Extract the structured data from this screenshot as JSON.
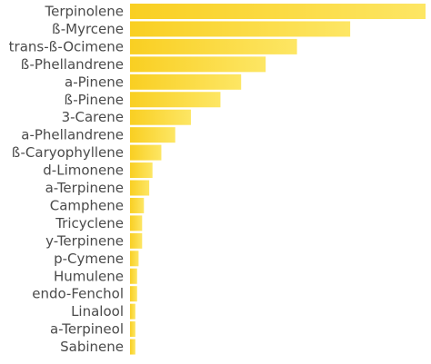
{
  "chart_data": {
    "type": "bar",
    "orientation": "horizontal",
    "title": "",
    "xlabel": "",
    "ylabel": "",
    "grid": false,
    "legend": "none",
    "colors": {
      "bar_start": "#f9cf22",
      "bar_end": "#fde664",
      "label": "#4a4a4a"
    },
    "xlim": [
      0,
      100
    ],
    "categories": [
      "Terpinolene",
      "ß-Myrcene",
      "trans-ß-Ocimene",
      "ß-Phellandrene",
      "a-Pinene",
      "ß-Pinene",
      "3-Carene",
      "a-Phellandrene",
      "ß-Caryophyllene",
      "d-Limonene",
      "a-Terpinene",
      "Camphene",
      "Tricyclene",
      "y-Terpinene",
      "p-Cymene",
      "Humulene",
      "endo-Fenchol",
      "Linalool",
      "a-Terpineol",
      "Sabinene"
    ],
    "values": [
      100,
      74.5,
      56.5,
      45.9,
      37.6,
      30.6,
      20.6,
      15.3,
      10.6,
      7.6,
      6.5,
      4.7,
      4.1,
      4.1,
      2.9,
      2.4,
      2.4,
      1.8,
      1.8,
      1.8
    ]
  }
}
